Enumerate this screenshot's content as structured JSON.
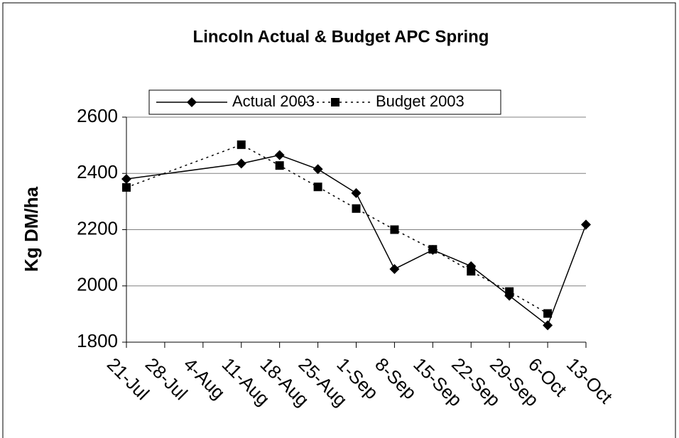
{
  "chart_data": {
    "type": "line",
    "title": "Lincoln Actual & Budget APC Spring",
    "y_label": "Kg DM/ha",
    "categories": [
      "21-Jul",
      "28-Jul",
      "4-Aug",
      "11-Aug",
      "18-Aug",
      "25-Aug",
      "1-Sep",
      "8-Sep",
      "15-Sep",
      "22-Sep",
      "29-Sep",
      "6-Oct",
      "13-Oct"
    ],
    "x": [
      "21-Jul",
      "11-Aug",
      "18-Aug",
      "25-Aug",
      "1-Sep",
      "8-Sep",
      "15-Sep",
      "22-Sep",
      "29-Sep",
      "6-Oct",
      "13-Oct"
    ],
    "series": [
      {
        "name": "Actual 2003",
        "color": "#000000",
        "marker": "diamond",
        "dash": "solid",
        "values": [
          2380,
          2435,
          2465,
          2415,
          2330,
          2060,
          2128,
          2070,
          1965,
          1860,
          2218
        ]
      },
      {
        "name": "Budget 2003",
        "color": "#000000",
        "marker": "square",
        "dash": "dotted",
        "values": [
          2350,
          2502,
          2428,
          2352,
          2275,
          2200,
          2130,
          2052,
          1980,
          1902,
          null
        ]
      }
    ],
    "ylim": [
      1800,
      2600
    ],
    "yticks": [
      1800,
      2000,
      2200,
      2400,
      2600
    ],
    "grid": true
  }
}
